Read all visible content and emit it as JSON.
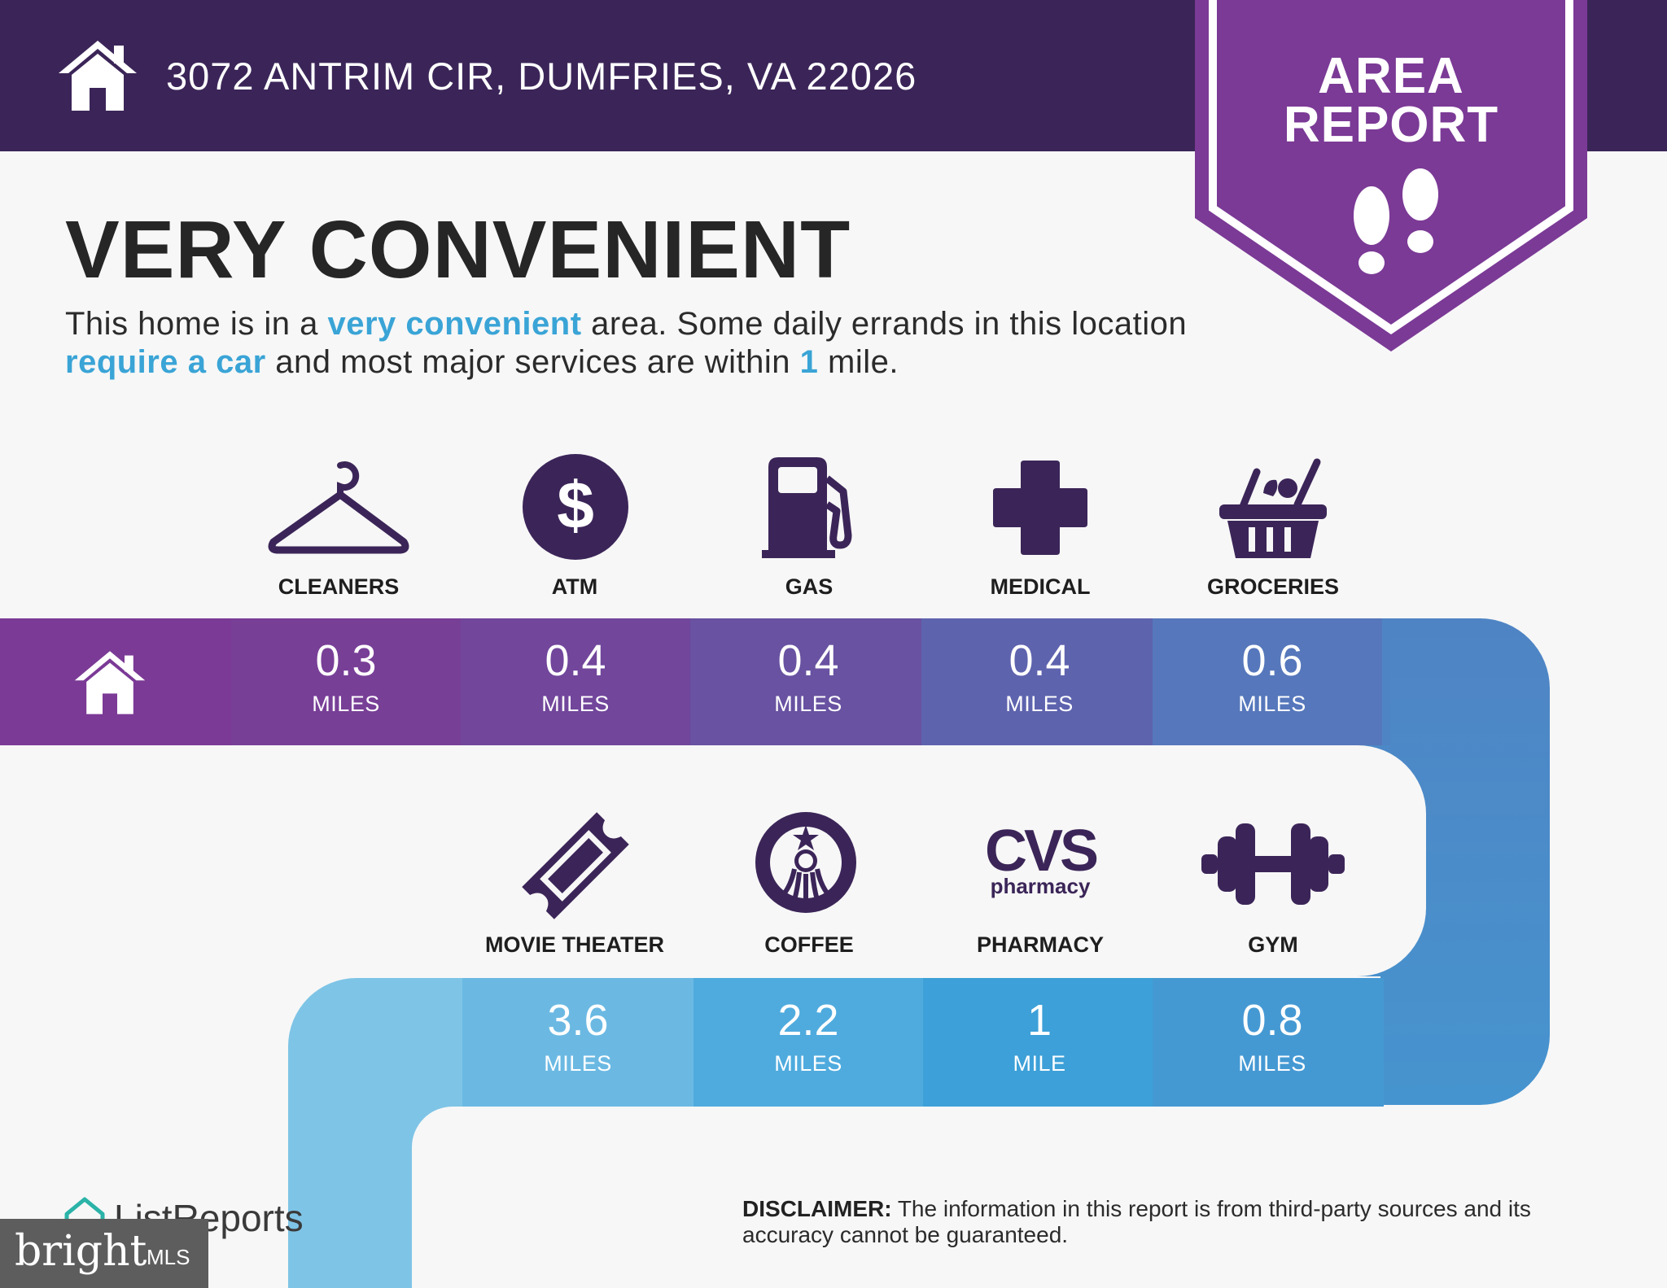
{
  "header": {
    "address": "3072 ANTRIM CIR, DUMFRIES, VA 22026",
    "badge_line1": "AREA",
    "badge_line2": "REPORT"
  },
  "headline": "VERY CONVENIENT",
  "intro": {
    "t1": "This home is in a ",
    "h1": "very convenient",
    "t2": " area. Some daily errands in this location ",
    "h2": "require a car",
    "t3": " and most major services are within ",
    "h3": "1",
    "t4": " mile."
  },
  "row1": [
    {
      "label": "CLEANERS",
      "value": "0.3",
      "unit": "MILES",
      "icon": "hanger-icon"
    },
    {
      "label": "ATM",
      "value": "0.4",
      "unit": "MILES",
      "icon": "dollar-icon"
    },
    {
      "label": "GAS",
      "value": "0.4",
      "unit": "MILES",
      "icon": "gas-pump-icon"
    },
    {
      "label": "MEDICAL",
      "value": "0.4",
      "unit": "MILES",
      "icon": "medical-cross-icon"
    },
    {
      "label": "GROCERIES",
      "value": "0.6",
      "unit": "MILES",
      "icon": "grocery-basket-icon"
    }
  ],
  "row2": [
    {
      "label": "MOVIE THEATER",
      "value": "3.6",
      "unit": "MILES",
      "icon": "ticket-icon"
    },
    {
      "label": "COFFEE",
      "value": "2.2",
      "unit": "MILES",
      "icon": "starbucks-logo-icon"
    },
    {
      "label": "PHARMACY",
      "value": "1",
      "unit": "MILE",
      "icon": "cvs-pharmacy-logo-icon"
    },
    {
      "label": "GYM",
      "value": "0.8",
      "unit": "MILES",
      "icon": "dumbbell-icon"
    }
  ],
  "logos": {
    "cvs_main": "CVS",
    "cvs_sub": "pharmacy"
  },
  "footer": {
    "brand": "ListReports",
    "bright_word": "bright",
    "bright_mls": "MLS",
    "disclaimer_label": "DISCLAIMER:",
    "disclaimer_text": " The information in this report is from third-party sources and its accuracy cannot be guaranteed."
  },
  "colors": {
    "header_bg": "#3b2558",
    "badge": "#7b3a96",
    "accent_text": "#3aa4d6",
    "icon": "#3b2558"
  }
}
